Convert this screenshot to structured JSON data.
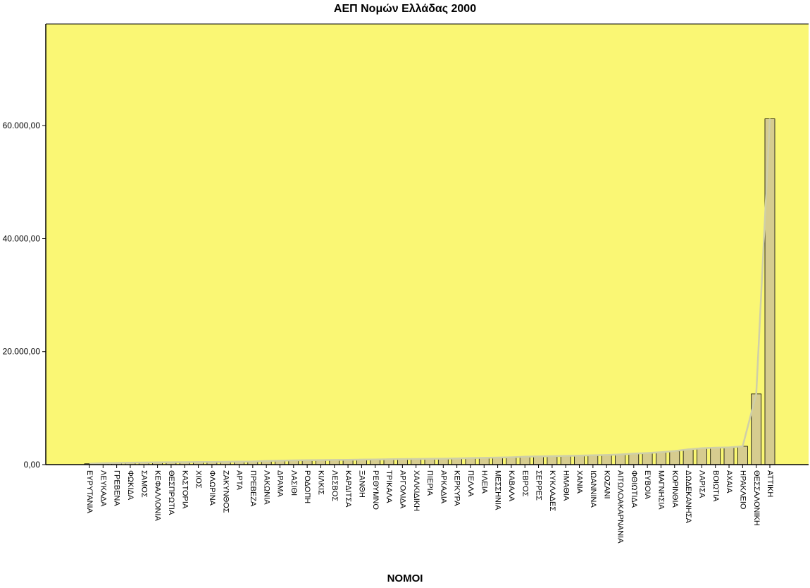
{
  "chart_data": {
    "type": "bar",
    "title": "ΑΕΠ Νομών Ελλάδας 2000",
    "xlabel": "ΝΟΜΟΙ",
    "ylabel": "",
    "ylim": [
      0,
      78000
    ],
    "yticks": [
      0,
      20000,
      40000,
      60000
    ],
    "ytick_labels": [
      "0,00",
      "20.000,00",
      "40.000,00",
      "60.000,00"
    ],
    "categories": [
      "ΕΥΡΥΤΑΝΙΑ",
      "ΛΕΥΚΑΔΑ",
      "ΓΡΕΒΕΝΑ",
      "ΦΩΚΙΔΑ",
      "ΣΑΜΟΣ",
      "ΚΕΦΑΛΛΟΝΙΑ",
      "ΘΕΣΠΡΩΤΙΑ",
      "ΚΑΣΤΟΡΙΑ",
      "ΧΙΟΣ",
      "ΦΛΩΡΙΝΑ",
      "ΖΑΚΥΝΘΟΣ",
      "ΑΡΤΑ",
      "ΠΡΕΒΕΖΑ",
      "ΛΑΚΩΝΙΑ",
      "ΔΡΑΜΑ",
      "ΛΑΣΙΘΙ",
      "ΡΟΔΟΠΗ",
      "ΚΙΛΚΙΣ",
      "ΛΕΣΒΟΣ",
      "ΚΑΡΔΙΤΣΑ",
      "ΞΑΝΘΗ",
      "ΡΕΘΥΜΝΟ",
      "ΤΡΙΚΑΛΑ",
      "ΑΡΓΟΛΙΔΑ",
      "ΧΑΛΚΙΔΙΚΗ",
      "ΠΙΕΡΙΑ",
      "ΑΡΚΑΔΙΑ",
      "ΚΕΡΚΥΡΑ",
      "ΠΕΛΛΑ",
      "ΗΛΕΙΑ",
      "ΜΕΣΣΗΝΙΑ",
      "ΚΑΒΑΛΑ",
      "ΕΒΡΟΣ",
      "ΣΕΡΡΕΣ",
      "ΚΥΚΛΑΔΕΣ",
      "ΗΜΑΘΙΑ",
      "ΧΑΝΙΑ",
      "ΙΩΑΝΝΙΝΑ",
      "ΚΟΖΑΝΙ",
      "ΑΙΤΩΛΟΑΚΑΡΝΑΝΙΑ",
      "ΦΘΙΩΤΙΔΑ",
      "ΕΥΒΟΙΑ",
      "ΜΑΓΝΗΣΙΑ",
      "ΚΟΡΙΝΘΙΑ",
      "ΔΩΔΕΚΑΝΗΣΑ",
      "ΛΑΡΙΣΑ",
      "ΒΟΙΩΤΙΑ",
      "ΑΧΑΙΑ",
      "ΗΡΑΚΛΕΙΟ",
      "ΘΕΣΣΑΛΟΝΙΚΗ",
      "ΑΤΤΙΚΗ"
    ],
    "values": [
      150,
      250,
      300,
      350,
      380,
      400,
      420,
      440,
      460,
      480,
      500,
      520,
      550,
      650,
      700,
      750,
      780,
      800,
      820,
      850,
      880,
      900,
      950,
      980,
      1000,
      1020,
      1050,
      1100,
      1150,
      1200,
      1250,
      1300,
      1400,
      1450,
      1500,
      1550,
      1600,
      1650,
      1700,
      1800,
      1950,
      2050,
      2200,
      2400,
      2700,
      2900,
      3000,
      3050,
      3250,
      12500,
      61200
    ],
    "bar_color": "#d6cc8f",
    "plot_background": "#faf774",
    "trend_line_color": "#cfcfa8",
    "grid": false,
    "legend": "none"
  }
}
